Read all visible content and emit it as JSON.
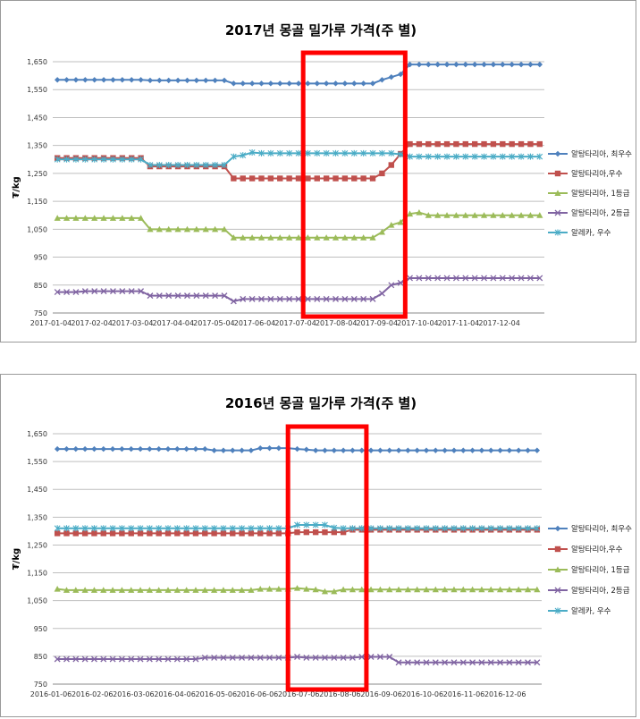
{
  "chart_data": [
    {
      "type": "line",
      "title": "2017년 몽골 밀가루 가격(주 별)",
      "ylabel": "₮/kg",
      "ylim": [
        750,
        1650
      ],
      "yticks": [
        "1,650",
        "1,550",
        "1,450",
        "1,350",
        "1,250",
        "1,150",
        "1,050",
        "950",
        "850",
        "750"
      ],
      "xticks": [
        "2017-01-04",
        "2017-02-04",
        "2017-03-04",
        "2017-04-04",
        "2017-05-04",
        "2017-06-04",
        "2017-07-04",
        "2017-08-04",
        "2017-09-04",
        "2017-10-04",
        "2017-11-04",
        "2017-12-04"
      ],
      "grid": true,
      "legend": "right",
      "highlight_week_range": [
        27,
        38
      ],
      "highlight_color": "#ff0000",
      "weeks": 53,
      "series": [
        {
          "name": "알탕타리아, 최우수",
          "color": "#4f81bd",
          "marker": "diamond",
          "values": [
            1585,
            1585,
            1585,
            1585,
            1585,
            1585,
            1585,
            1585,
            1585,
            1585,
            1583,
            1583,
            1583,
            1583,
            1583,
            1583,
            1583,
            1583,
            1583,
            1572,
            1572,
            1572,
            1572,
            1572,
            1572,
            1572,
            1572,
            1572,
            1572,
            1572,
            1572,
            1572,
            1572,
            1572,
            1572,
            1585,
            1595,
            1605,
            1640,
            1640,
            1640,
            1640,
            1640,
            1640,
            1640,
            1640,
            1640,
            1640,
            1640,
            1640,
            1640,
            1640,
            1640
          ]
        },
        {
          "name": "알탕타리아,우수",
          "color": "#c0504d",
          "marker": "square",
          "values": [
            1305,
            1305,
            1305,
            1305,
            1305,
            1305,
            1305,
            1305,
            1305,
            1305,
            1275,
            1275,
            1275,
            1275,
            1275,
            1275,
            1275,
            1275,
            1275,
            1232,
            1232,
            1232,
            1232,
            1232,
            1232,
            1232,
            1232,
            1232,
            1232,
            1232,
            1232,
            1232,
            1232,
            1232,
            1232,
            1250,
            1280,
            1320,
            1355,
            1355,
            1355,
            1355,
            1355,
            1355,
            1355,
            1355,
            1355,
            1355,
            1355,
            1355,
            1355,
            1355,
            1355
          ]
        },
        {
          "name": "알탕타리아, 1등급",
          "color": "#9bbb59",
          "marker": "triangle",
          "values": [
            1090,
            1090,
            1090,
            1090,
            1090,
            1090,
            1090,
            1090,
            1090,
            1090,
            1050,
            1050,
            1050,
            1050,
            1050,
            1050,
            1050,
            1050,
            1050,
            1020,
            1020,
            1020,
            1020,
            1020,
            1020,
            1020,
            1020,
            1020,
            1020,
            1020,
            1020,
            1020,
            1020,
            1020,
            1020,
            1040,
            1065,
            1075,
            1105,
            1110,
            1100,
            1100,
            1100,
            1100,
            1100,
            1100,
            1100,
            1100,
            1100,
            1100,
            1100,
            1100,
            1100
          ]
        },
        {
          "name": "알탕타리아, 2등급",
          "color": "#8064a2",
          "marker": "x",
          "values": [
            825,
            825,
            825,
            828,
            828,
            828,
            828,
            828,
            828,
            828,
            812,
            812,
            812,
            812,
            812,
            812,
            812,
            812,
            812,
            792,
            800,
            800,
            800,
            800,
            800,
            800,
            800,
            800,
            800,
            800,
            800,
            800,
            800,
            800,
            800,
            820,
            850,
            858,
            875,
            875,
            875,
            875,
            875,
            875,
            875,
            875,
            875,
            875,
            875,
            875,
            875,
            875,
            875
          ]
        },
        {
          "name": "알레카, 우수",
          "color": "#4bacc6",
          "marker": "asterisk",
          "values": [
            1300,
            1300,
            1300,
            1300,
            1300,
            1300,
            1300,
            1300,
            1300,
            1300,
            1280,
            1280,
            1280,
            1280,
            1280,
            1280,
            1280,
            1280,
            1280,
            1310,
            1315,
            1325,
            1322,
            1322,
            1322,
            1322,
            1322,
            1322,
            1322,
            1322,
            1322,
            1322,
            1322,
            1322,
            1322,
            1322,
            1322,
            1318,
            1310,
            1310,
            1310,
            1310,
            1310,
            1310,
            1310,
            1310,
            1310,
            1310,
            1310,
            1310,
            1310,
            1310,
            1310
          ]
        }
      ]
    },
    {
      "type": "line",
      "title": "2016년 몽골 밀가루 가격(주 별)",
      "ylabel": "₮/kg",
      "ylim": [
        750,
        1650
      ],
      "yticks": [
        "1,650",
        "1,550",
        "1,450",
        "1,350",
        "1,250",
        "1,150",
        "1,050",
        "950",
        "850",
        "750"
      ],
      "xticks": [
        "2016-01-06",
        "2016-02-06",
        "2016-03-06",
        "2016-04-06",
        "2016-05-06",
        "2016-06-06",
        "2016-07-06",
        "2016-08-06",
        "2016-09-06",
        "2016-10-06",
        "2016-11-06",
        "2016-12-06"
      ],
      "grid": true,
      "legend": "right",
      "highlight_week_range": [
        25.5,
        34
      ],
      "highlight_color": "#ff0000",
      "weeks": 53,
      "series": [
        {
          "name": "알탕타리아, 최우수",
          "color": "#4f81bd",
          "marker": "diamond",
          "values": [
            1595,
            1595,
            1595,
            1595,
            1595,
            1595,
            1595,
            1595,
            1595,
            1595,
            1595,
            1595,
            1595,
            1595,
            1595,
            1595,
            1595,
            1590,
            1590,
            1590,
            1590,
            1590,
            1598,
            1598,
            1598,
            1598,
            1595,
            1593,
            1590,
            1590,
            1590,
            1590,
            1590,
            1590,
            1590,
            1590,
            1590,
            1590,
            1590,
            1590,
            1590,
            1590,
            1590,
            1590,
            1590,
            1590,
            1590,
            1590,
            1590,
            1590,
            1590,
            1590,
            1590
          ]
        },
        {
          "name": "알탕타리아,우수",
          "color": "#c0504d",
          "marker": "square",
          "values": [
            1292,
            1292,
            1292,
            1292,
            1292,
            1292,
            1292,
            1292,
            1292,
            1292,
            1292,
            1292,
            1292,
            1292,
            1292,
            1292,
            1292,
            1292,
            1292,
            1292,
            1292,
            1292,
            1292,
            1292,
            1292,
            1292,
            1296,
            1296,
            1296,
            1296,
            1296,
            1296,
            1305,
            1305,
            1305,
            1305,
            1305,
            1305,
            1305,
            1305,
            1305,
            1305,
            1305,
            1305,
            1305,
            1305,
            1305,
            1305,
            1305,
            1305,
            1305,
            1305,
            1305
          ]
        },
        {
          "name": "알탕타리아, 1등급",
          "color": "#9bbb59",
          "marker": "triangle",
          "values": [
            1092,
            1088,
            1088,
            1088,
            1088,
            1088,
            1088,
            1088,
            1088,
            1088,
            1088,
            1088,
            1088,
            1088,
            1088,
            1088,
            1088,
            1088,
            1088,
            1088,
            1088,
            1088,
            1092,
            1092,
            1092,
            1092,
            1095,
            1092,
            1090,
            1083,
            1083,
            1090,
            1090,
            1090,
            1090,
            1090,
            1090,
            1090,
            1090,
            1090,
            1090,
            1090,
            1090,
            1090,
            1090,
            1090,
            1090,
            1090,
            1090,
            1090,
            1090,
            1090,
            1090
          ]
        },
        {
          "name": "알탕타리아, 2등급",
          "color": "#8064a2",
          "marker": "x",
          "values": [
            840,
            840,
            840,
            840,
            840,
            840,
            840,
            840,
            840,
            840,
            840,
            840,
            840,
            840,
            840,
            840,
            845,
            845,
            845,
            845,
            845,
            845,
            845,
            845,
            845,
            845,
            848,
            845,
            845,
            845,
            845,
            845,
            845,
            848,
            848,
            848,
            848,
            828,
            828,
            828,
            828,
            828,
            828,
            828,
            828,
            828,
            828,
            828,
            828,
            828,
            828,
            828,
            828
          ]
        },
        {
          "name": "알레카, 우수",
          "color": "#4bacc6",
          "marker": "asterisk",
          "values": [
            1310,
            1310,
            1310,
            1310,
            1310,
            1310,
            1310,
            1310,
            1310,
            1310,
            1310,
            1310,
            1310,
            1310,
            1310,
            1310,
            1310,
            1310,
            1310,
            1310,
            1310,
            1310,
            1310,
            1310,
            1310,
            1310,
            1322,
            1322,
            1322,
            1322,
            1312,
            1310,
            1310,
            1310,
            1310,
            1310,
            1310,
            1310,
            1310,
            1310,
            1310,
            1310,
            1310,
            1310,
            1310,
            1310,
            1310,
            1310,
            1310,
            1310,
            1310,
            1310,
            1310
          ]
        }
      ]
    }
  ]
}
